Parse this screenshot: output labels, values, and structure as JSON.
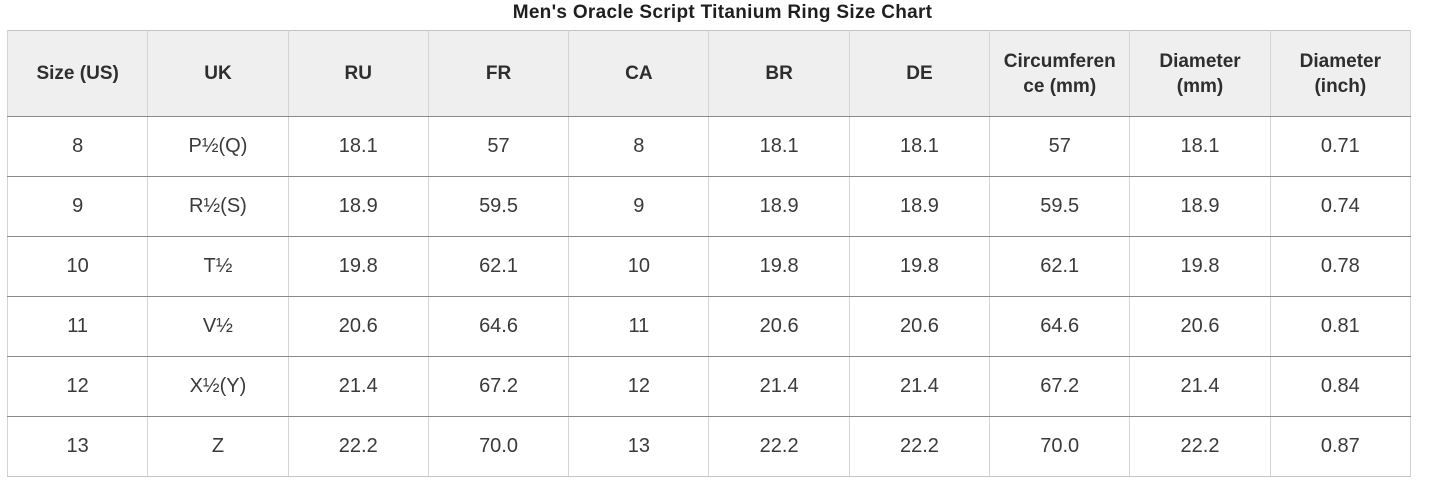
{
  "title": "Men's Oracle Script Titanium Ring Size Chart",
  "colors": {
    "header_background": "#efefef",
    "body_background": "#ffffff",
    "row_separator": "#8a8a8a",
    "column_separator": "#d4d4d4",
    "outer_border": "#c4c4c4",
    "title_text": "#1f1f1f",
    "cell_text": "#3a3a3a"
  },
  "chart_data": {
    "type": "table",
    "title": "Men's Oracle Script Titanium Ring Size Chart",
    "columns": [
      "Size (US)",
      "UK",
      "RU",
      "FR",
      "CA",
      "BR",
      "DE",
      "Circumference (mm)",
      "Diameter (mm)",
      "Diameter (inch)"
    ],
    "rows": [
      [
        "8",
        "P½(Q)",
        "18.1",
        "57",
        "8",
        "18.1",
        "18.1",
        "57",
        "18.1",
        "0.71"
      ],
      [
        "9",
        "R½(S)",
        "18.9",
        "59.5",
        "9",
        "18.9",
        "18.9",
        "59.5",
        "18.9",
        "0.74"
      ],
      [
        "10",
        "T½",
        "19.8",
        "62.1",
        "10",
        "19.8",
        "19.8",
        "62.1",
        "19.8",
        "0.78"
      ],
      [
        "11",
        "V½",
        "20.6",
        "64.6",
        "11",
        "20.6",
        "20.6",
        "64.6",
        "20.6",
        "0.81"
      ],
      [
        "12",
        "X½(Y)",
        "21.4",
        "67.2",
        "12",
        "21.4",
        "21.4",
        "67.2",
        "21.4",
        "0.84"
      ],
      [
        "13",
        "Z",
        "22.2",
        "70.0",
        "13",
        "22.2",
        "22.2",
        "70.0",
        "22.2",
        "0.87"
      ]
    ]
  }
}
